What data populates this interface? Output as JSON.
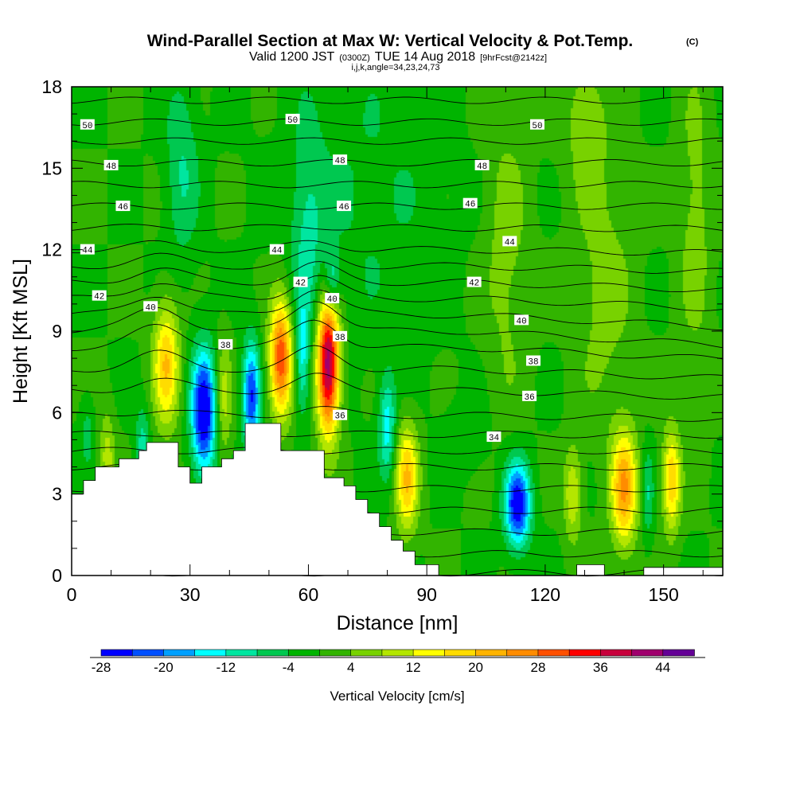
{
  "title": "Wind-Parallel Section at Max W: Vertical Velocity & Pot.Temp.",
  "title_mark": "(C)",
  "subtitle": {
    "valid": "Valid 1200 JST",
    "utc": "(0300Z)",
    "date": "TUE 14 Aug 2018",
    "fcst": "[9hrFcst@2142z]"
  },
  "index_line": "i,j,k,angle=34,23,24,73",
  "chart_data": {
    "type": "heatmap",
    "xlabel": "Distance [nm]",
    "ylabel": "Height [Kft MSL]",
    "xlim": [
      0,
      165
    ],
    "ylim": [
      0,
      18
    ],
    "x_ticks": [
      "0",
      "30",
      "60",
      "90",
      "120",
      "150"
    ],
    "y_ticks": [
      "0",
      "3",
      "6",
      "9",
      "12",
      "15",
      "18"
    ],
    "colorbar": {
      "title": "Vertical Velocity [cm/s]",
      "labels": [
        "-28",
        "-20",
        "-12",
        "-4",
        "4",
        "12",
        "20",
        "28",
        "36",
        "44"
      ],
      "levels": [
        -28,
        -24,
        -20,
        -16,
        -12,
        -8,
        -4,
        0,
        4,
        8,
        12,
        16,
        20,
        24,
        28,
        32,
        36,
        40,
        44,
        48
      ],
      "colors": [
        "#0000ff",
        "#0050ff",
        "#00a0ff",
        "#00ffff",
        "#00e6a0",
        "#00c850",
        "#00b400",
        "#32b400",
        "#78d200",
        "#b4e600",
        "#ffff00",
        "#ffdc00",
        "#ffb400",
        "#ff8c00",
        "#ff5000",
        "#ff0000",
        "#c8003c",
        "#a0006e",
        "#640096"
      ]
    },
    "background_w": 0,
    "w_cells": [
      {
        "x": 24,
        "y": 7.8,
        "sx": 2.3,
        "sy": 1.6,
        "w": 20
      },
      {
        "x": 33.5,
        "y": 6.0,
        "sx": 2.2,
        "sy": 1.6,
        "w": -30
      },
      {
        "x": 38.5,
        "y": 6.5,
        "sx": 1.4,
        "sy": 1.6,
        "w": 10
      },
      {
        "x": 45.5,
        "y": 6.6,
        "sx": 1.5,
        "sy": 1.4,
        "w": -24
      },
      {
        "x": 53,
        "y": 8.0,
        "sx": 2.0,
        "sy": 1.5,
        "w": 32
      },
      {
        "x": 58.5,
        "y": 8.0,
        "sx": 1.2,
        "sy": 1.5,
        "w": -12
      },
      {
        "x": 65,
        "y": 7.8,
        "sx": 2.0,
        "sy": 1.8,
        "w": 44
      },
      {
        "x": 80,
        "y": 5.5,
        "sx": 1.5,
        "sy": 1.3,
        "w": -14
      },
      {
        "x": 85,
        "y": 3.6,
        "sx": 2.0,
        "sy": 1.4,
        "w": 20
      },
      {
        "x": 113,
        "y": 2.6,
        "sx": 2.3,
        "sy": 1.1,
        "w": -28
      },
      {
        "x": 127,
        "y": 3.0,
        "sx": 1.6,
        "sy": 1.2,
        "w": 12
      },
      {
        "x": 140,
        "y": 3.2,
        "sx": 2.3,
        "sy": 1.5,
        "w": 24
      },
      {
        "x": 146,
        "y": 3.0,
        "sx": 1.0,
        "sy": 1.2,
        "w": -8
      },
      {
        "x": 152,
        "y": 3.5,
        "sx": 1.6,
        "sy": 1.3,
        "w": 20
      },
      {
        "x": 9,
        "y": 4.3,
        "sx": 1.4,
        "sy": 1.2,
        "w": 10
      },
      {
        "x": 18,
        "y": 4.8,
        "sx": 1.3,
        "sy": 1.0,
        "w": -10
      },
      {
        "x": 4,
        "y": 5.3,
        "sx": 1.2,
        "sy": 0.9,
        "w": -6
      },
      {
        "x": 100,
        "y": 5.0,
        "sx": 4.0,
        "sy": 0.9,
        "w": -4
      },
      {
        "x": 75,
        "y": 14.0,
        "sx": 14.0,
        "sy": 4.0,
        "w": -4
      },
      {
        "x": 28,
        "y": 15.0,
        "sx": 3.0,
        "sy": 2.5,
        "w": -8
      },
      {
        "x": 60,
        "y": 12.5,
        "sx": 3.0,
        "sy": 2.8,
        "w": -8
      },
      {
        "x": 66,
        "y": 10.8,
        "sx": 1.4,
        "sy": 0.8,
        "w": -14
      },
      {
        "x": 110,
        "y": 12.0,
        "sx": 4.0,
        "sy": 4.0,
        "w": 6
      },
      {
        "x": 135,
        "y": 10.5,
        "sx": 5.0,
        "sy": 3.5,
        "w": 6
      },
      {
        "x": 158,
        "y": 13.0,
        "sx": 3.0,
        "sy": 4.0,
        "w": 6
      },
      {
        "x": 130,
        "y": 17.0,
        "sx": 4.0,
        "sy": 2.0,
        "w": 6
      }
    ],
    "terrain": [
      [
        0,
        3.0
      ],
      [
        3,
        3.0
      ],
      [
        3,
        3.5
      ],
      [
        6,
        3.5
      ],
      [
        6,
        4.0
      ],
      [
        12,
        4.0
      ],
      [
        12,
        4.3
      ],
      [
        17,
        4.3
      ],
      [
        17,
        4.6
      ],
      [
        19,
        4.6
      ],
      [
        19,
        4.9
      ],
      [
        27,
        4.9
      ],
      [
        27,
        4.0
      ],
      [
        30,
        4.0
      ],
      [
        30,
        3.4
      ],
      [
        33,
        3.4
      ],
      [
        33,
        4.0
      ],
      [
        38,
        4.0
      ],
      [
        38,
        4.3
      ],
      [
        41,
        4.3
      ],
      [
        41,
        4.6
      ],
      [
        44,
        4.6
      ],
      [
        44,
        5.6
      ],
      [
        53,
        5.6
      ],
      [
        53,
        4.6
      ],
      [
        64,
        4.6
      ],
      [
        64,
        3.6
      ],
      [
        69,
        3.6
      ],
      [
        69,
        3.3
      ],
      [
        72,
        3.3
      ],
      [
        72,
        2.8
      ],
      [
        75,
        2.8
      ],
      [
        75,
        2.3
      ],
      [
        78,
        2.3
      ],
      [
        78,
        1.8
      ],
      [
        81,
        1.8
      ],
      [
        81,
        1.3
      ],
      [
        84,
        1.3
      ],
      [
        84,
        0.9
      ],
      [
        87,
        0.9
      ],
      [
        87,
        0.4
      ],
      [
        93,
        0.4
      ],
      [
        93,
        0.0
      ],
      [
        128,
        0.0
      ],
      [
        128,
        0.4
      ],
      [
        135,
        0.4
      ],
      [
        135,
        0.0
      ],
      [
        145,
        0.0
      ],
      [
        145,
        0.3
      ],
      [
        165,
        0.3
      ]
    ],
    "theta": {
      "levels": [
        27,
        28,
        29,
        30,
        31,
        32,
        33,
        34,
        35,
        36,
        37,
        38,
        39,
        40,
        41,
        42,
        43,
        44,
        45,
        46,
        47,
        48,
        49,
        50,
        51
      ],
      "base_heights": [
        0.1,
        0.8,
        1.6,
        2.4,
        3.2,
        4.0,
        4.6,
        5.2,
        5.9,
        6.8,
        7.6,
        8.4,
        9.0,
        9.6,
        10.2,
        10.8,
        11.4,
        12.0,
        12.8,
        13.6,
        14.4,
        15.2,
        16.0,
        16.7,
        17.5
      ],
      "labels": [
        {
          "text": "50",
          "x": 4,
          "y": 16.6
        },
        {
          "text": "50",
          "x": 56,
          "y": 16.8
        },
        {
          "text": "50",
          "x": 118,
          "y": 16.6
        },
        {
          "text": "48",
          "x": 10,
          "y": 15.1
        },
        {
          "text": "48",
          "x": 68,
          "y": 15.3
        },
        {
          "text": "48",
          "x": 104,
          "y": 15.1
        },
        {
          "text": "46",
          "x": 13,
          "y": 13.6
        },
        {
          "text": "46",
          "x": 69,
          "y": 13.6
        },
        {
          "text": "46",
          "x": 101,
          "y": 13.7
        },
        {
          "text": "44",
          "x": 4,
          "y": 12.0
        },
        {
          "text": "44",
          "x": 52,
          "y": 12.0
        },
        {
          "text": "44",
          "x": 111,
          "y": 12.3
        },
        {
          "text": "42",
          "x": 7,
          "y": 10.3
        },
        {
          "text": "42",
          "x": 58,
          "y": 10.8
        },
        {
          "text": "42",
          "x": 102,
          "y": 10.8
        },
        {
          "text": "40",
          "x": 20,
          "y": 9.9
        },
        {
          "text": "40",
          "x": 66,
          "y": 10.2
        },
        {
          "text": "40",
          "x": 114,
          "y": 9.4
        },
        {
          "text": "38",
          "x": 39,
          "y": 8.5
        },
        {
          "text": "38",
          "x": 68,
          "y": 8.8
        },
        {
          "text": "38",
          "x": 117,
          "y": 7.9
        },
        {
          "text": "36",
          "x": 68,
          "y": 5.9
        },
        {
          "text": "36",
          "x": 116,
          "y": 6.6
        },
        {
          "text": "34",
          "x": 107,
          "y": 5.1
        }
      ]
    }
  },
  "colors": {
    "frame": "#000000",
    "terrain": "#ffffff",
    "label_bg": "#ffffff"
  }
}
